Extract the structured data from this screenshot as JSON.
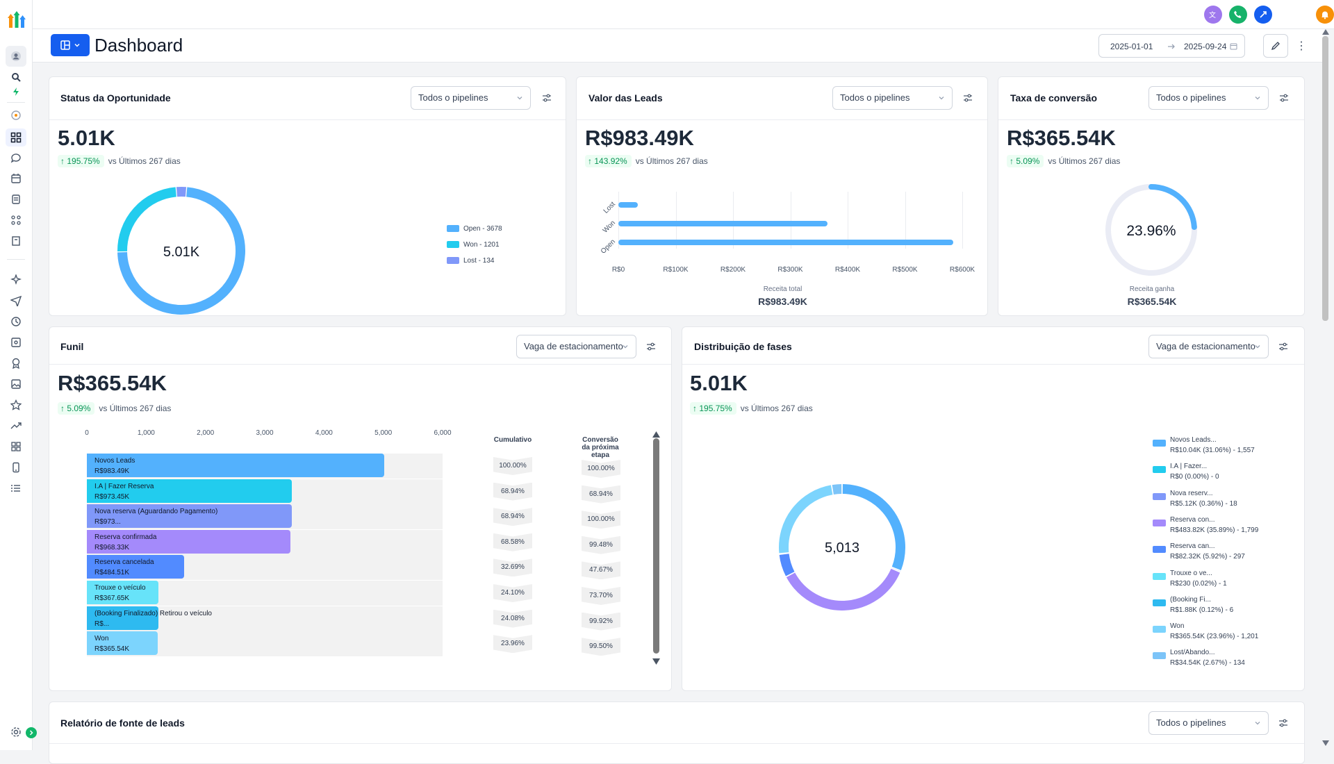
{
  "app": {
    "title": "Dashboard",
    "date_start": "2025-01-01",
    "date_end": "2025-09-24"
  },
  "colors": {
    "accent": "#155eef",
    "open": "#53b1fd",
    "won": "#22ccee",
    "lost": "#8098f9",
    "green": "#079455"
  },
  "cards": {
    "status": {
      "title": "Status da Oportunidade",
      "filter": "Todos o pipelines",
      "value": "5.01K",
      "delta": "195.75%",
      "compare": "vs Últimos 267 dias",
      "center": "5.01K",
      "legend": [
        {
          "label": "Open - 3678",
          "value": 3678,
          "color": "#53b1fd"
        },
        {
          "label": "Won - 1201",
          "value": 1201,
          "color": "#22ccee"
        },
        {
          "label": "Lost - 134",
          "value": 134,
          "color": "#8098f9"
        }
      ]
    },
    "valor": {
      "title": "Valor das Leads",
      "filter": "Todos o pipelines",
      "value": "R$983.49K",
      "delta": "143.92%",
      "compare": "vs Últimos 267 dias",
      "x_ticks": [
        "R$0",
        "R$100K",
        "R$200K",
        "R$300K",
        "R$400K",
        "R$500K",
        "R$600K"
      ],
      "bars": [
        {
          "label": "Lost",
          "value": 34
        },
        {
          "label": "Won",
          "value": 365
        },
        {
          "label": "Open",
          "value": 584
        }
      ],
      "footer_label": "Receita total",
      "footer_value": "R$983.49K"
    },
    "taxa": {
      "title": "Taxa de conversão",
      "filter": "Todos o pipelines",
      "value": "R$365.54K",
      "delta": "5.09%",
      "compare": "vs Últimos 267 dias",
      "percent": "23.96%",
      "percent_value": 23.96,
      "footer_label": "Receita ganha",
      "footer_value": "R$365.54K"
    },
    "funil": {
      "title": "Funil",
      "filter": "Vaga de estacionamento",
      "value": "R$365.54K",
      "delta": "5.09%",
      "compare": "vs Últimos 267 dias",
      "x_ticks": [
        "0",
        "1,000",
        "2,000",
        "3,000",
        "4,000",
        "5,000",
        "6,000"
      ],
      "col_cumulative": "Cumulativo",
      "col_next": "Conversão da próxima etapa",
      "stages": [
        {
          "name": "Novos Leads",
          "amount": "R$983.49K",
          "count": 5013,
          "cumulative": "100.00%",
          "next": "100.00%",
          "color": "#53b1fd"
        },
        {
          "name": "I.A | Fazer Reserva",
          "amount": "R$973.45K",
          "count": 3456,
          "cumulative": "68.94%",
          "next": "68.94%",
          "color": "#22ccee"
        },
        {
          "name": "Nova reserva (Aguardando Pagamento)",
          "amount": "R$973...",
          "count": 3456,
          "cumulative": "68.94%",
          "next": "100.00%",
          "color": "#8098f9"
        },
        {
          "name": "Reserva confirmada",
          "amount": "R$968.33K",
          "count": 3438,
          "cumulative": "68.58%",
          "next": "99.48%",
          "color": "#a48afb"
        },
        {
          "name": "Reserva cancelada",
          "amount": "R$484.51K",
          "count": 1639,
          "cumulative": "32.69%",
          "next": "47.67%",
          "color": "#528bff"
        },
        {
          "name": "Trouxe o veículo",
          "amount": "R$367.65K",
          "count": 1208,
          "cumulative": "24.10%",
          "next": "73.70%",
          "color": "#67e3f9"
        },
        {
          "name": "(Booking Finalizado) Retirou o veículo",
          "amount": "R$...",
          "count": 1207,
          "cumulative": "24.08%",
          "next": "99.92%",
          "color": "#2ebaf0"
        },
        {
          "name": "Won",
          "amount": "R$365.54K",
          "count": 1201,
          "cumulative": "23.96%",
          "next": "99.50%",
          "color": "#7cd4fd"
        }
      ]
    },
    "fases": {
      "title": "Distribuição de fases",
      "filter": "Vaga de estacionamento",
      "value": "5.01K",
      "delta": "195.75%",
      "compare": "vs Últimos 267 dias",
      "center": "5,013",
      "legend": [
        {
          "name": "Novos Leads...",
          "detail": "R$10.04K (31.06%) - 1,557",
          "value": 1557,
          "color": "#53b1fd"
        },
        {
          "name": "I.A | Fazer...",
          "detail": "R$0 (0.00%) - 0",
          "value": 0,
          "color": "#22ccee"
        },
        {
          "name": "Nova reserv...",
          "detail": "R$5.12K (0.36%) - 18",
          "value": 18,
          "color": "#8098f9"
        },
        {
          "name": "Reserva con...",
          "detail": "R$483.82K (35.89%) - 1,799",
          "value": 1799,
          "color": "#a48afb"
        },
        {
          "name": "Reserva can...",
          "detail": "R$82.32K (5.92%) - 297",
          "value": 297,
          "color": "#528bff"
        },
        {
          "name": "Trouxe o ve...",
          "detail": "R$230 (0.02%) - 1",
          "value": 1,
          "color": "#67e3f9"
        },
        {
          "name": "(Booking Fi...",
          "detail": "R$1.88K (0.12%) - 6",
          "value": 6,
          "color": "#2ebaf0"
        },
        {
          "name": "Won",
          "detail": "R$365.54K (23.96%) - 1,201",
          "value": 1201,
          "color": "#7cd4fd"
        },
        {
          "name": "Lost/Abando...",
          "detail": "R$34.54K (2.67%) - 134",
          "value": 134,
          "color": "#7cc4f8"
        }
      ]
    },
    "fonte": {
      "title": "Relatório de fonte de leads",
      "filter": "Todos o pipelines"
    }
  },
  "icons": {
    "translate": "translate-icon",
    "phone": "phone-icon",
    "share": "share-icon",
    "bell": "bell-icon"
  }
}
